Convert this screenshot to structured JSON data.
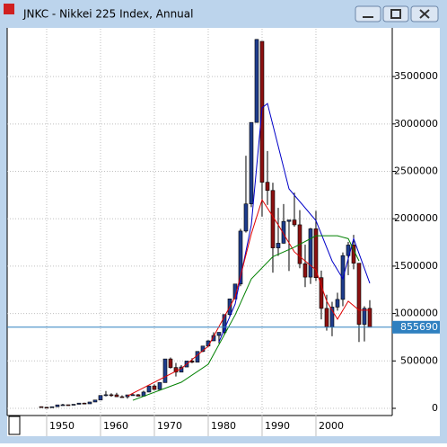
{
  "chart_data": {
    "type": "candlestick",
    "title": "JNKC - Nikkei 225 Index, Annual",
    "x": [
      1949,
      1950,
      1951,
      1952,
      1953,
      1954,
      1955,
      1956,
      1957,
      1958,
      1959,
      1960,
      1961,
      1962,
      1963,
      1964,
      1965,
      1966,
      1967,
      1968,
      1969,
      1970,
      1971,
      1972,
      1973,
      1974,
      1975,
      1976,
      1977,
      1978,
      1979,
      1980,
      1981,
      1982,
      1983,
      1984,
      1985,
      1986,
      1987,
      1988,
      1989,
      1990,
      1991,
      1992,
      1993,
      1994,
      1995,
      1996,
      1997,
      1998,
      1999,
      2000,
      2001,
      2002,
      2003,
      2004,
      2005,
      2006,
      2007,
      2008,
      2009,
      2010
    ],
    "open": [
      17600,
      11000,
      10100,
      16600,
      36200,
      37700,
      35600,
      42500,
      54900,
      47400,
      66600,
      87400,
      135600,
      143200,
      142000,
      122500,
      121600,
      141700,
      143200,
      128300,
      171400,
      235800,
      198700,
      271300,
      520700,
      430600,
      381700,
      435800,
      499000,
      486500,
      600100,
      656900,
      711600,
      768200,
      801600,
      989300,
      1154200,
      1311300,
      1870100,
      2156400,
      3015900,
      3871200,
      2384900,
      2298400,
      1692500,
      1741700,
      1972300,
      1986800,
      1936100,
      1525900,
      1384200,
      1893400,
      1378600,
      1054300,
      857900,
      1067700,
      1148900,
      1611100,
      1722600,
      1530800,
      886000,
      1054600
    ],
    "high": [
      17600,
      11500,
      16700,
      36200,
      47400,
      38000,
      42600,
      55000,
      59500,
      66700,
      87400,
      135600,
      182900,
      158900,
      163400,
      136900,
      141700,
      158800,
      150600,
      185100,
      235800,
      253400,
      274000,
      520700,
      535900,
      478700,
      456400,
      499000,
      528700,
      600100,
      659000,
      718800,
      801900,
      802600,
      989300,
      1157700,
      1312800,
      1893600,
      2664600,
      3015900,
      3895700,
      3871200,
      2714600,
      2380100,
      2114800,
      2155200,
      1986800,
      2275000,
      2091000,
      1726400,
      1903400,
      2083300,
      1452900,
      1197900,
      1123800,
      1219500,
      1644500,
      1756300,
      1830000,
      1530800,
      1076700,
      1140800
    ],
    "low": [
      8500,
      8500,
      10000,
      16400,
      29500,
      31600,
      35300,
      42400,
      47100,
      47100,
      66000,
      87000,
      125800,
      121600,
      120000,
      120200,
      102000,
      136400,
      125000,
      126600,
      170000,
      192900,
      198100,
      271200,
      418800,
      335500,
      381400,
      435800,
      476100,
      486700,
      592500,
      647600,
      711600,
      684900,
      780300,
      970300,
      1154200,
      1288100,
      1854400,
      2121700,
      3015900,
      2022200,
      2145600,
      1430900,
      1607800,
      1737000,
      1448500,
      1916100,
      1477500,
      1278700,
      1312200,
      1342300,
      938200,
      819700,
      760400,
      1030000,
      1077100,
      1404600,
      1466900,
      699500,
      705500,
      879600
    ],
    "close": [
      11000,
      10100,
      16600,
      36200,
      37700,
      35600,
      42500,
      54900,
      47400,
      66600,
      87400,
      135600,
      143200,
      142000,
      122500,
      121600,
      141700,
      143200,
      128300,
      171400,
      235800,
      198700,
      271300,
      520700,
      430600,
      381700,
      435800,
      499000,
      486500,
      600100,
      656900,
      711600,
      768200,
      801600,
      989300,
      1154200,
      1311300,
      1870100,
      2156400,
      3015900,
      3891600,
      2384900,
      2298400,
      1692500,
      1741700,
      1972300,
      1986800,
      1936100,
      1525900,
      1384200,
      1893400,
      1378600,
      1054300,
      857900,
      1067700,
      1148900,
      1611100,
      1722600,
      1530800,
      886000,
      1054600,
      855690
    ],
    "up_color": "#1e3c8c",
    "down_color": "#8b1010",
    "xlim": [
      1942.67,
      2014.17
    ],
    "xticks": [
      1950,
      1960,
      1970,
      1980,
      1990,
      2000
    ],
    "ylim": [
      -76000,
      4004000
    ],
    "yticks": [
      0,
      500000,
      1000000,
      1500000,
      2000000,
      2500000,
      3000000,
      3500000
    ],
    "grid": true,
    "overlays": [
      {
        "color": "#0000c8",
        "x": [
          1982,
          1985,
          1988,
          1990,
          1991,
          1995,
          2000,
          2003,
          2005,
          2007,
          2010
        ],
        "values": [
          700000,
          1100000,
          1935000,
          3170000,
          3215000,
          2315000,
          1980000,
          1555000,
          1366000,
          1790000,
          1319000
        ]
      },
      {
        "color": "#e00000",
        "x": [
          1965,
          1975,
          1980,
          1985,
          1988,
          1990,
          1993,
          1996,
          2000,
          2002,
          2004,
          2006,
          2008,
          2010
        ],
        "values": [
          130000,
          420000,
          655000,
          1175000,
          1840000,
          2200000,
          1935000,
          1650000,
          1460000,
          1130000,
          940000,
          1130000,
          1035000,
          1035000
        ]
      },
      {
        "color": "#008000",
        "x": [
          1966,
          1975,
          1980,
          1985,
          1988,
          1992,
          1996,
          2000,
          2004,
          2006,
          2008
        ],
        "values": [
          85000,
          275000,
          465000,
          985000,
          1365000,
          1600000,
          1700000,
          1820000,
          1820000,
          1790000,
          1555000
        ]
      }
    ],
    "price_line": {
      "value": 855690,
      "color": "#2f80c0"
    }
  }
}
